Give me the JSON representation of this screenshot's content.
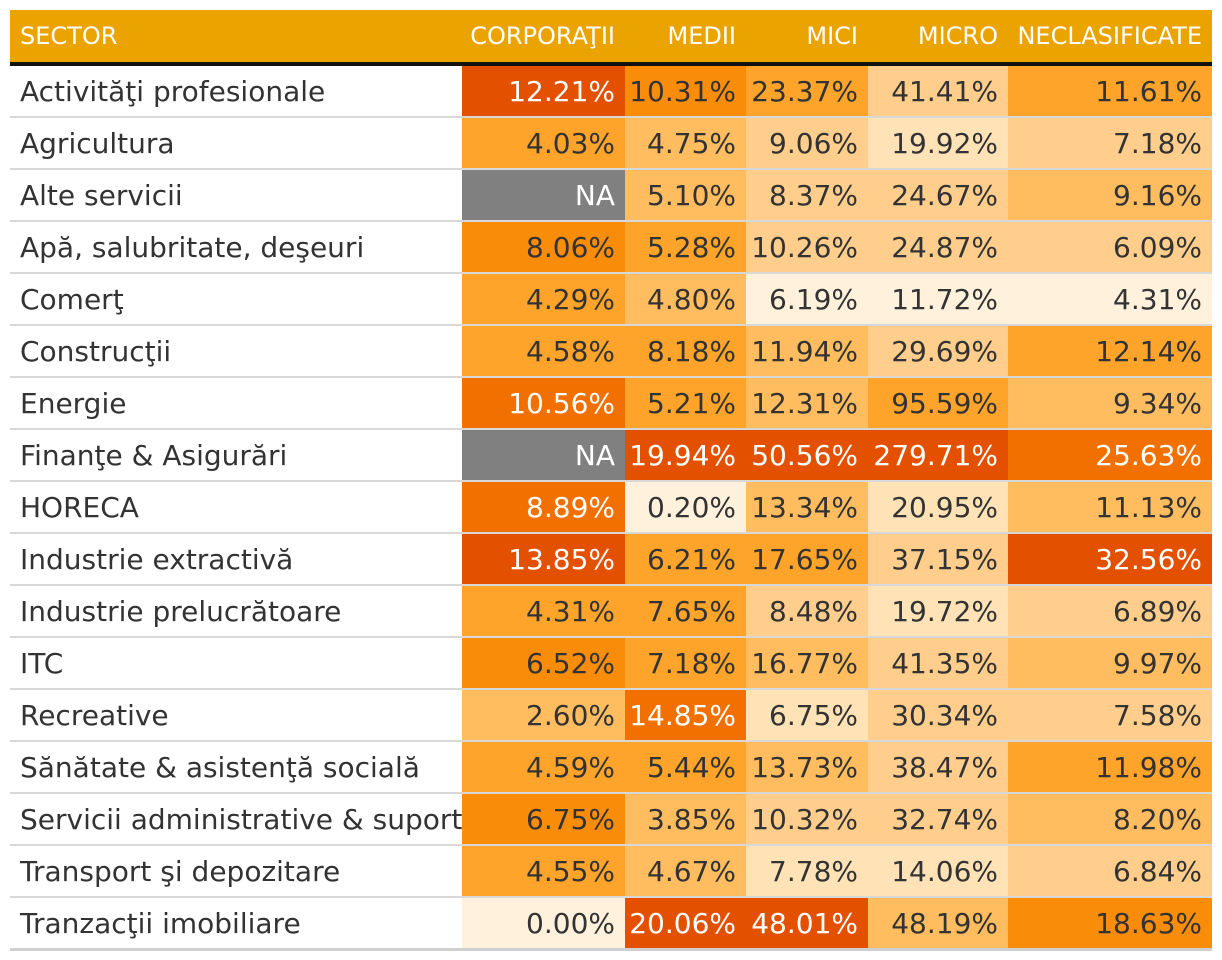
{
  "chart_data": {
    "type": "table",
    "columns": [
      "SECTOR",
      "CORPORAŢII",
      "MEDII",
      "MICI",
      "MICRO",
      "NECLASIFICATE"
    ],
    "rows": [
      {
        "sector": "Activităţi profesionale",
        "values": [
          "12.21%",
          "10.31%",
          "23.37%",
          "41.41%",
          "11.61%"
        ]
      },
      {
        "sector": "Agricultura",
        "values": [
          "4.03%",
          "4.75%",
          "9.06%",
          "19.92%",
          "7.18%"
        ]
      },
      {
        "sector": "Alte servicii",
        "values": [
          "NA",
          "5.10%",
          "8.37%",
          "24.67%",
          "9.16%"
        ]
      },
      {
        "sector": "Apă, salubritate, deşeuri",
        "values": [
          "8.06%",
          "5.28%",
          "10.26%",
          "24.87%",
          "6.09%"
        ]
      },
      {
        "sector": "Comerţ",
        "values": [
          "4.29%",
          "4.80%",
          "6.19%",
          "11.72%",
          "4.31%"
        ]
      },
      {
        "sector": "Construcţii",
        "values": [
          "4.58%",
          "8.18%",
          "11.94%",
          "29.69%",
          "12.14%"
        ]
      },
      {
        "sector": "Energie",
        "values": [
          "10.56%",
          "5.21%",
          "12.31%",
          "95.59%",
          "9.34%"
        ]
      },
      {
        "sector": "Finanţe & Asigurări",
        "values": [
          "NA",
          "19.94%",
          "50.56%",
          "279.71%",
          "25.63%"
        ]
      },
      {
        "sector": "HORECA",
        "values": [
          "8.89%",
          "0.20%",
          "13.34%",
          "20.95%",
          "11.13%"
        ]
      },
      {
        "sector": "Industrie extractivă",
        "values": [
          "13.85%",
          "6.21%",
          "17.65%",
          "37.15%",
          "32.56%"
        ]
      },
      {
        "sector": "Industrie prelucrătoare",
        "values": [
          "4.31%",
          "7.65%",
          "8.48%",
          "19.72%",
          "6.89%"
        ]
      },
      {
        "sector": "ITC",
        "values": [
          "6.52%",
          "7.18%",
          "16.77%",
          "41.35%",
          "9.97%"
        ]
      },
      {
        "sector": "Recreative",
        "values": [
          "2.60%",
          "14.85%",
          "6.75%",
          "30.34%",
          "7.58%"
        ]
      },
      {
        "sector": "Sănătate & asistenţă socială",
        "values": [
          "4.59%",
          "5.44%",
          "13.73%",
          "38.47%",
          "11.98%"
        ]
      },
      {
        "sector": "Servicii administrative & suport",
        "values": [
          "6.75%",
          "3.85%",
          "10.32%",
          "32.74%",
          "8.20%"
        ]
      },
      {
        "sector": "Transport şi depozitare",
        "values": [
          "4.55%",
          "4.67%",
          "7.78%",
          "14.06%",
          "6.84%"
        ]
      },
      {
        "sector": "Tranzacţii imobiliare",
        "values": [
          "0.00%",
          "20.06%",
          "48.01%",
          "48.19%",
          "18.63%"
        ]
      }
    ],
    "colors": {
      "header_bg": "#eba300",
      "header_text": "#ffffff",
      "na_bg": "#808080",
      "scale": [
        "#fff1dc",
        "#ffe2b6",
        "#ffce8c",
        "#ffbd60",
        "#ffa42a",
        "#f98d0a",
        "#f17000",
        "#e35000"
      ]
    }
  }
}
